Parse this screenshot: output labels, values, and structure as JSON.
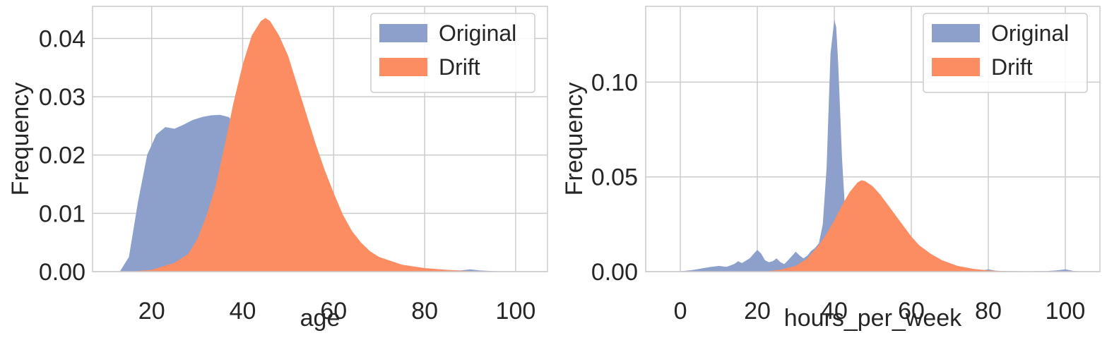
{
  "chart_data": [
    {
      "type": "area",
      "xlabel": "age",
      "ylabel": "Frequency",
      "xlim": [
        7,
        107
      ],
      "ylim": [
        0,
        0.0455
      ],
      "xticks": [
        20,
        40,
        60,
        80,
        100
      ],
      "xtick_labels": [
        "20",
        "40",
        "60",
        "80",
        "100"
      ],
      "yticks": [
        0,
        0.01,
        0.02,
        0.03,
        0.04
      ],
      "ytick_labels": [
        "0.00",
        "0.01",
        "0.02",
        "0.03",
        "0.04"
      ],
      "grid": true,
      "legend_position": "top-right",
      "series": [
        {
          "name": "Original",
          "color": "#8da0cb",
          "x": [
            13,
            15,
            17,
            19,
            21,
            23,
            25,
            27,
            29,
            31,
            33,
            35,
            37,
            39,
            41,
            43,
            45,
            50,
            55,
            60,
            65,
            70,
            75,
            80,
            85,
            88,
            90,
            92,
            95,
            100
          ],
          "y": [
            0,
            0.0025,
            0.012,
            0.02,
            0.0235,
            0.0248,
            0.0245,
            0.0252,
            0.026,
            0.0265,
            0.0268,
            0.0269,
            0.0265,
            0.024,
            0.02,
            0.0165,
            0.013,
            0.0085,
            0.0055,
            0.0035,
            0.002,
            0.0012,
            0.0007,
            0.0004,
            0.0002,
            0.0002,
            0.0004,
            0.0002,
            0.0001,
            0
          ]
        },
        {
          "name": "Drift",
          "color": "#fc8d62",
          "x": [
            15,
            20,
            25,
            28,
            30,
            32,
            34,
            36,
            38,
            40,
            42,
            44,
            45,
            46,
            48,
            50,
            52,
            54,
            56,
            58,
            60,
            62,
            64,
            66,
            68,
            70,
            75,
            80,
            85,
            90,
            95
          ],
          "y": [
            0,
            0.0003,
            0.0015,
            0.003,
            0.0055,
            0.0095,
            0.0145,
            0.0215,
            0.029,
            0.0355,
            0.0405,
            0.043,
            0.0435,
            0.043,
            0.0405,
            0.037,
            0.032,
            0.027,
            0.022,
            0.0175,
            0.0135,
            0.0098,
            0.007,
            0.005,
            0.0035,
            0.0025,
            0.0012,
            0.0006,
            0.0003,
            0.0001,
            0
          ]
        }
      ]
    },
    {
      "type": "area",
      "xlabel": "hours_per_week",
      "ylabel": "Frequency",
      "xlim": [
        -9,
        109
      ],
      "ylim": [
        0,
        0.14
      ],
      "xticks": [
        0,
        20,
        40,
        60,
        80,
        100
      ],
      "xtick_labels": [
        "0",
        "20",
        "40",
        "60",
        "80",
        "100"
      ],
      "yticks": [
        0,
        0.05,
        0.1
      ],
      "ytick_labels": [
        "0.00",
        "0.05",
        "0.10"
      ],
      "grid": true,
      "legend_position": "top-right",
      "series": [
        {
          "name": "Original",
          "color": "#8da0cb",
          "x": [
            -2,
            0,
            3,
            5,
            8,
            10,
            12,
            14,
            15,
            16,
            18,
            20,
            21,
            22,
            23,
            24,
            25,
            26,
            27,
            28,
            30,
            31,
            32,
            33,
            34,
            35,
            36,
            37,
            38,
            39,
            40,
            40.5,
            41,
            42,
            43,
            44,
            45,
            46,
            48,
            50,
            55,
            60,
            65,
            70,
            75,
            78,
            80,
            82,
            85,
            90,
            95,
            98,
            100,
            102,
            104
          ],
          "y": [
            0,
            0.0002,
            0.0008,
            0.0015,
            0.0025,
            0.003,
            0.0025,
            0.004,
            0.0055,
            0.0045,
            0.007,
            0.0115,
            0.0095,
            0.006,
            0.005,
            0.0055,
            0.007,
            0.005,
            0.004,
            0.006,
            0.0105,
            0.0085,
            0.007,
            0.0085,
            0.011,
            0.0125,
            0.015,
            0.025,
            0.055,
            0.115,
            0.133,
            0.129,
            0.11,
            0.06,
            0.025,
            0.015,
            0.012,
            0.01,
            0.0075,
            0.006,
            0.0035,
            0.0025,
            0.0015,
            0.001,
            0.0006,
            0.0006,
            0.0012,
            0.0005,
            0.0003,
            0.0002,
            0.0003,
            0.0007,
            0.0012,
            0.0004,
            0
          ]
        },
        {
          "name": "Drift",
          "color": "#fc8d62",
          "x": [
            22,
            26,
            30,
            33,
            36,
            38,
            40,
            42,
            44,
            46,
            47,
            48,
            50,
            52,
            54,
            56,
            58,
            60,
            62,
            65,
            68,
            72,
            76,
            80,
            85,
            90
          ],
          "y": [
            0,
            0.001,
            0.003,
            0.007,
            0.014,
            0.02,
            0.027,
            0.035,
            0.042,
            0.047,
            0.0482,
            0.0478,
            0.045,
            0.0405,
            0.035,
            0.0295,
            0.024,
            0.0185,
            0.014,
            0.0095,
            0.006,
            0.003,
            0.0015,
            0.0006,
            0.0002,
            0
          ]
        }
      ]
    }
  ]
}
